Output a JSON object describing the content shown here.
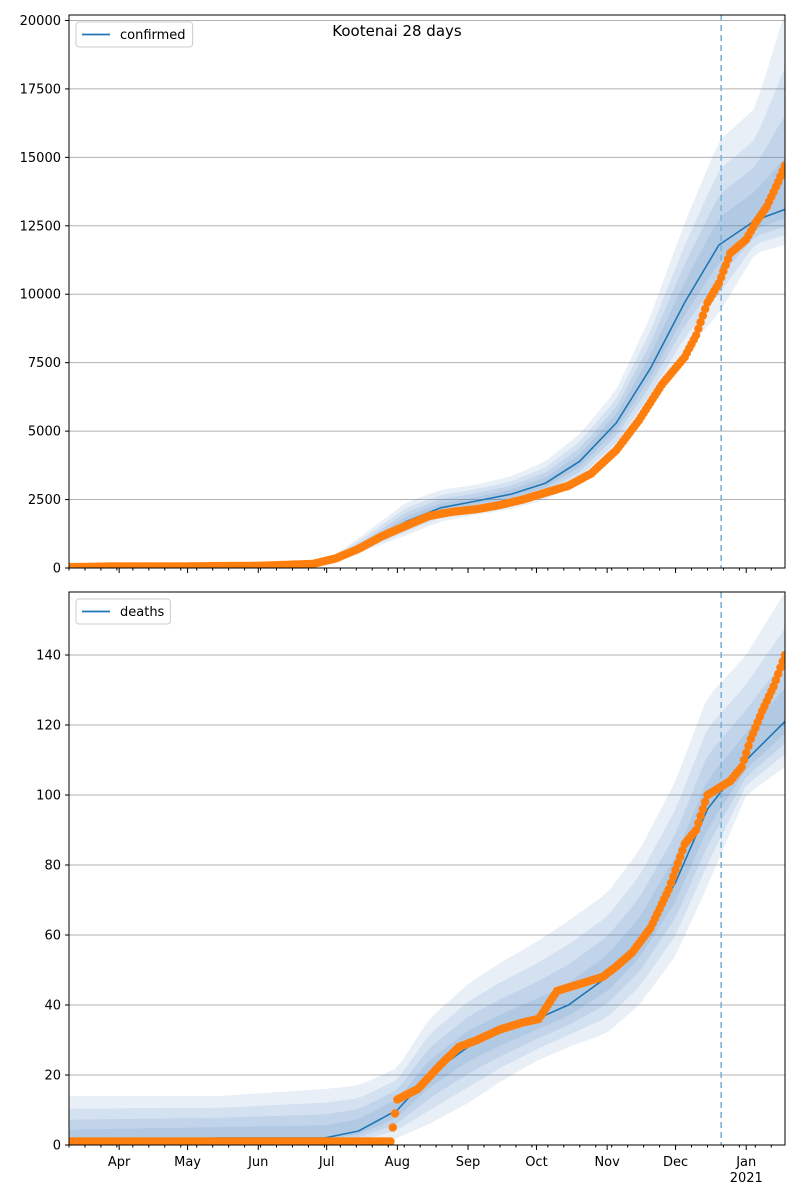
{
  "figure_title": "Kootenai 28 days",
  "x_ticks": [
    "Apr",
    "May",
    "Jun",
    "Jul",
    "Aug",
    "Sep",
    "Oct",
    "Nov",
    "Dec",
    "Jan"
  ],
  "x_year_label": "2021",
  "colors": {
    "line": "#1f77b4",
    "points": "#ff7f0e",
    "band": "#4a86c5",
    "forecast_marker": "#7fb2d8",
    "grid": "#b0b0b0"
  },
  "chart_data": [
    {
      "type": "line",
      "legend": "confirmed",
      "legend_position": "top-left",
      "grid": "horizontal",
      "x_start": "2020-03-10",
      "x_end": "2021-01-18",
      "forecast_start": "2020-12-21",
      "ylim": [
        0,
        20200
      ],
      "y_ticks": [
        0,
        2500,
        5000,
        7500,
        10000,
        12500,
        15000,
        17500,
        20000
      ],
      "fit": {
        "x": [
          "2020-03-10",
          "2020-06-20",
          "2020-07-05",
          "2020-07-20",
          "2020-08-05",
          "2020-08-20",
          "2020-09-05",
          "2020-09-20",
          "2020-10-05",
          "2020-10-20",
          "2020-11-05",
          "2020-11-20",
          "2020-12-05",
          "2020-12-20",
          "2021-01-05",
          "2021-01-18"
        ],
        "y": [
          0,
          80,
          300,
          900,
          1700,
          2200,
          2450,
          2700,
          3100,
          3900,
          5300,
          7300,
          9700,
          11800,
          12700,
          13100
        ]
      },
      "bands": {
        "x": [
          "2020-03-10",
          "2020-06-20",
          "2020-07-05",
          "2020-07-20",
          "2020-08-05",
          "2020-08-20",
          "2020-09-05",
          "2020-09-20",
          "2020-10-05",
          "2020-10-20",
          "2020-11-05",
          "2020-11-20",
          "2020-12-05",
          "2020-12-20",
          "2021-01-05",
          "2021-01-18"
        ],
        "lower": [
          0,
          40,
          200,
          700,
          1200,
          1700,
          1950,
          2150,
          2500,
          3100,
          4300,
          6000,
          7900,
          9300,
          11500,
          11800
        ],
        "upper": [
          120,
          150,
          500,
          1400,
          2400,
          2850,
          3050,
          3350,
          3900,
          4900,
          6500,
          9200,
          12600,
          15600,
          16800,
          20300
        ]
      },
      "observed": {
        "x": [
          "2020-03-10",
          "2020-04-01",
          "2020-05-01",
          "2020-06-01",
          "2020-06-25",
          "2020-07-05",
          "2020-07-15",
          "2020-07-25",
          "2020-08-05",
          "2020-08-15",
          "2020-08-25",
          "2020-09-05",
          "2020-09-15",
          "2020-09-25",
          "2020-10-05",
          "2020-10-15",
          "2020-10-25",
          "2020-11-05",
          "2020-11-15",
          "2020-11-25",
          "2020-12-05",
          "2020-12-10",
          "2020-12-15",
          "2020-12-20",
          "2020-12-25",
          "2021-01-01",
          "2021-01-05",
          "2021-01-10",
          "2021-01-15",
          "2021-01-18"
        ],
        "y": [
          30,
          60,
          60,
          80,
          150,
          350,
          700,
          1150,
          1550,
          1900,
          2050,
          2150,
          2300,
          2500,
          2750,
          3000,
          3450,
          4300,
          5400,
          6700,
          7700,
          8500,
          9700,
          10400,
          11500,
          12000,
          12600,
          13200,
          14100,
          14700
        ]
      }
    },
    {
      "type": "line",
      "legend": "deaths",
      "legend_position": "top-left",
      "grid": "horizontal",
      "x_start": "2020-03-10",
      "x_end": "2021-01-18",
      "forecast_start": "2020-12-21",
      "ylim": [
        0,
        158
      ],
      "y_ticks": [
        0,
        20,
        40,
        60,
        80,
        100,
        120,
        140
      ],
      "fit": {
        "x": [
          "2020-03-10",
          "2020-05-15",
          "2020-06-30",
          "2020-07-15",
          "2020-08-01",
          "2020-08-15",
          "2020-09-01",
          "2020-09-15",
          "2020-10-01",
          "2020-10-15",
          "2020-11-01",
          "2020-11-15",
          "2020-12-01",
          "2020-12-15",
          "2021-01-01",
          "2021-01-18"
        ],
        "y": [
          1,
          2,
          2,
          4,
          10,
          20,
          28,
          32,
          36,
          40,
          48,
          58,
          75,
          96,
          110,
          121
        ]
      },
      "bands": {
        "x": [
          "2020-03-10",
          "2020-05-15",
          "2020-06-30",
          "2020-07-15",
          "2020-08-01",
          "2020-08-15",
          "2020-09-01",
          "2020-09-15",
          "2020-10-01",
          "2020-10-15",
          "2020-11-01",
          "2020-11-15",
          "2020-12-01",
          "2020-12-15",
          "2021-01-01",
          "2021-01-18"
        ],
        "lower": [
          0,
          0,
          0,
          0,
          2,
          6,
          12,
          18,
          24,
          28,
          32,
          40,
          54,
          74,
          100,
          108
        ],
        "upper": [
          14,
          14,
          16,
          17,
          22,
          36,
          46,
          52,
          58,
          64,
          72,
          84,
          104,
          128,
          140,
          158
        ]
      },
      "observed": {
        "x": [
          "2020-03-10",
          "2020-04-15",
          "2020-05-15",
          "2020-06-15",
          "2020-07-15",
          "2020-07-29",
          "2020-08-01",
          "2020-08-10",
          "2020-08-20",
          "2020-08-28",
          "2020-09-05",
          "2020-09-15",
          "2020-09-25",
          "2020-10-02",
          "2020-10-10",
          "2020-10-20",
          "2020-10-30",
          "2020-11-05",
          "2020-11-12",
          "2020-11-20",
          "2020-11-28",
          "2020-12-05",
          "2020-12-10",
          "2020-12-15",
          "2020-12-20",
          "2020-12-25",
          "2020-12-30",
          "2021-01-03",
          "2021-01-08",
          "2021-01-13",
          "2021-01-18"
        ],
        "y": [
          1,
          1,
          1,
          1,
          1,
          1,
          13,
          16,
          23,
          28,
          30,
          33,
          35,
          36,
          44,
          46,
          48,
          51,
          55,
          62,
          73,
          86,
          90,
          100,
          102,
          104,
          108,
          116,
          124,
          131,
          140
        ]
      }
    }
  ]
}
